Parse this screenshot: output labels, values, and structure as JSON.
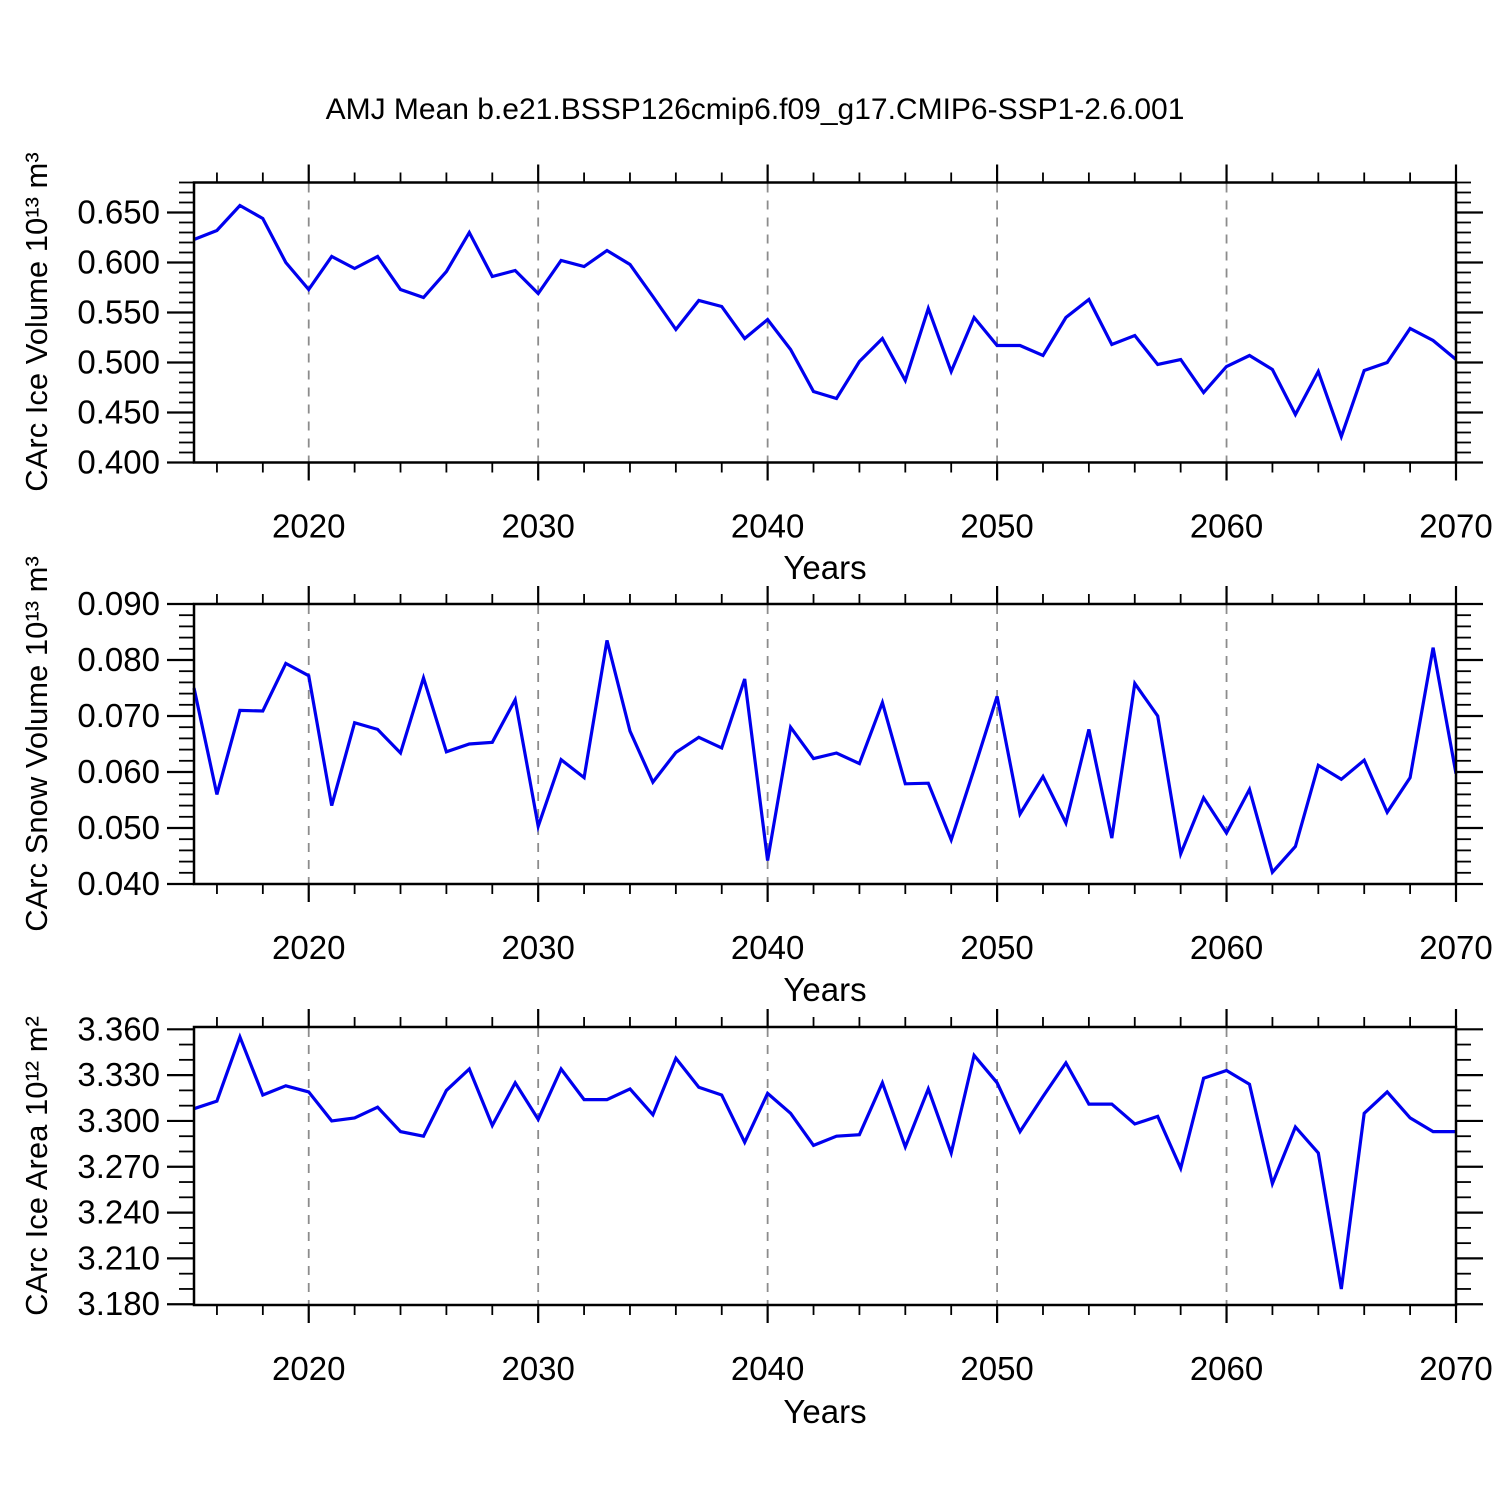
{
  "title": "AMJ Mean b.e21.BSSP126cmip6.f09_g17.CMIP6-SSP1-2.6.001",
  "line_color": "#0000ee",
  "grid_color": "#8c8c8c",
  "frame_color": "#000000",
  "chart_data": [
    {
      "type": "line",
      "ylabel": "CArc Ice Volume 10¹³ m³",
      "xlabel": "Years",
      "x": [
        2015,
        2016,
        2017,
        2018,
        2019,
        2020,
        2021,
        2022,
        2023,
        2024,
        2025,
        2026,
        2027,
        2028,
        2029,
        2030,
        2031,
        2032,
        2033,
        2034,
        2035,
        2036,
        2037,
        2038,
        2039,
        2040,
        2041,
        2042,
        2043,
        2044,
        2045,
        2046,
        2047,
        2048,
        2049,
        2050,
        2051,
        2052,
        2053,
        2054,
        2055,
        2056,
        2057,
        2058,
        2059,
        2060,
        2061,
        2062,
        2063,
        2064,
        2065,
        2066,
        2067,
        2068,
        2069,
        2070
      ],
      "values": [
        0.623,
        0.632,
        0.657,
        0.644,
        0.6,
        0.573,
        0.606,
        0.594,
        0.606,
        0.573,
        0.565,
        0.591,
        0.63,
        0.586,
        0.592,
        0.569,
        0.602,
        0.596,
        0.612,
        0.598,
        0.566,
        0.533,
        0.562,
        0.556,
        0.524,
        0.543,
        0.513,
        0.471,
        0.464,
        0.501,
        0.524,
        0.482,
        0.554,
        0.491,
        0.545,
        0.517,
        0.517,
        0.507,
        0.545,
        0.563,
        0.518,
        0.527,
        0.498,
        0.503,
        0.47,
        0.496,
        0.507,
        0.493,
        0.448,
        0.491,
        0.426,
        0.492,
        0.5,
        0.534,
        0.522,
        0.503
      ],
      "xlim": [
        2015,
        2070
      ],
      "ylim": [
        0.4,
        0.68
      ],
      "yticks": [
        0.4,
        0.45,
        0.5,
        0.55,
        0.6,
        0.65
      ],
      "yminor_step": 0.01,
      "yminor_start": 0.4,
      "xticks": [
        2020,
        2030,
        2040,
        2050,
        2060,
        2070
      ],
      "xminor_step": 2,
      "grid_x": [
        2020,
        2030,
        2040,
        2050,
        2060
      ],
      "grid_on": "vertical-dashed-only"
    },
    {
      "type": "line",
      "ylabel": "CArc Snow Volume 10¹³ m³",
      "xlabel": "Years",
      "x": [
        2015,
        2016,
        2017,
        2018,
        2019,
        2020,
        2021,
        2022,
        2023,
        2024,
        2025,
        2026,
        2027,
        2028,
        2029,
        2030,
        2031,
        2032,
        2033,
        2034,
        2035,
        2036,
        2037,
        2038,
        2039,
        2040,
        2041,
        2042,
        2043,
        2044,
        2045,
        2046,
        2047,
        2048,
        2049,
        2050,
        2051,
        2052,
        2053,
        2054,
        2055,
        2056,
        2057,
        2058,
        2059,
        2060,
        2061,
        2062,
        2063,
        2064,
        2065,
        2066,
        2067,
        2068,
        2069,
        2070
      ],
      "values": [
        0.075,
        0.056,
        0.071,
        0.0709,
        0.0794,
        0.0772,
        0.054,
        0.0688,
        0.0676,
        0.0634,
        0.0768,
        0.0636,
        0.065,
        0.0653,
        0.0729,
        0.0503,
        0.0622,
        0.059,
        0.0835,
        0.0673,
        0.0582,
        0.0635,
        0.0662,
        0.0643,
        0.0766,
        0.0442,
        0.068,
        0.0624,
        0.0634,
        0.0615,
        0.0724,
        0.0579,
        0.058,
        0.0479,
        0.0605,
        0.0735,
        0.0525,
        0.0592,
        0.0509,
        0.0676,
        0.0482,
        0.0758,
        0.07,
        0.0454,
        0.0554,
        0.0491,
        0.0569,
        0.0421,
        0.0467,
        0.0612,
        0.0587,
        0.0621,
        0.0528,
        0.059,
        0.0822,
        0.0597
      ],
      "xlim": [
        2015,
        2070
      ],
      "ylim": [
        0.04,
        0.09
      ],
      "yticks": [
        0.04,
        0.05,
        0.06,
        0.07,
        0.08,
        0.09
      ],
      "yminor_step": 0.002,
      "yminor_start": 0.04,
      "xticks": [
        2020,
        2030,
        2040,
        2050,
        2060,
        2070
      ],
      "xminor_step": 2,
      "grid_x": [
        2020,
        2030,
        2040,
        2050,
        2060
      ],
      "grid_on": "vertical-dashed-only"
    },
    {
      "type": "line",
      "ylabel": "CArc Ice Area 10¹² m²",
      "xlabel": "Years",
      "x": [
        2015,
        2016,
        2017,
        2018,
        2019,
        2020,
        2021,
        2022,
        2023,
        2024,
        2025,
        2026,
        2027,
        2028,
        2029,
        2030,
        2031,
        2032,
        2033,
        2034,
        2035,
        2036,
        2037,
        2038,
        2039,
        2040,
        2041,
        2042,
        2043,
        2044,
        2045,
        2046,
        2047,
        2048,
        2049,
        2050,
        2051,
        2052,
        2053,
        2054,
        2055,
        2056,
        2057,
        2058,
        2059,
        2060,
        2061,
        2062,
        2063,
        2064,
        2065,
        2066,
        2067,
        2068,
        2069,
        2070
      ],
      "values": [
        3.308,
        3.313,
        3.355,
        3.317,
        3.323,
        3.319,
        3.3,
        3.302,
        3.309,
        3.293,
        3.29,
        3.32,
        3.334,
        3.297,
        3.325,
        3.301,
        3.334,
        3.314,
        3.314,
        3.321,
        3.304,
        3.341,
        3.322,
        3.317,
        3.286,
        3.318,
        3.305,
        3.284,
        3.29,
        3.291,
        3.325,
        3.283,
        3.321,
        3.279,
        3.343,
        3.325,
        3.293,
        3.316,
        3.338,
        3.311,
        3.311,
        3.298,
        3.303,
        3.269,
        3.328,
        3.333,
        3.324,
        3.259,
        3.296,
        3.279,
        3.19,
        3.305,
        3.319,
        3.302,
        3.293,
        3.293
      ],
      "xlim": [
        2015,
        2070
      ],
      "ylim": [
        3.1795,
        3.3615
      ],
      "yticks": [
        3.18,
        3.21,
        3.24,
        3.27,
        3.3,
        3.33,
        3.36
      ],
      "yminor_step": 0.01,
      "yminor_start": 3.18,
      "xticks": [
        2020,
        2030,
        2040,
        2050,
        2060,
        2070
      ],
      "xminor_step": 2,
      "grid_x": [
        2020,
        2030,
        2040,
        2050,
        2060
      ],
      "grid_on": "vertical-dashed-only"
    }
  ]
}
